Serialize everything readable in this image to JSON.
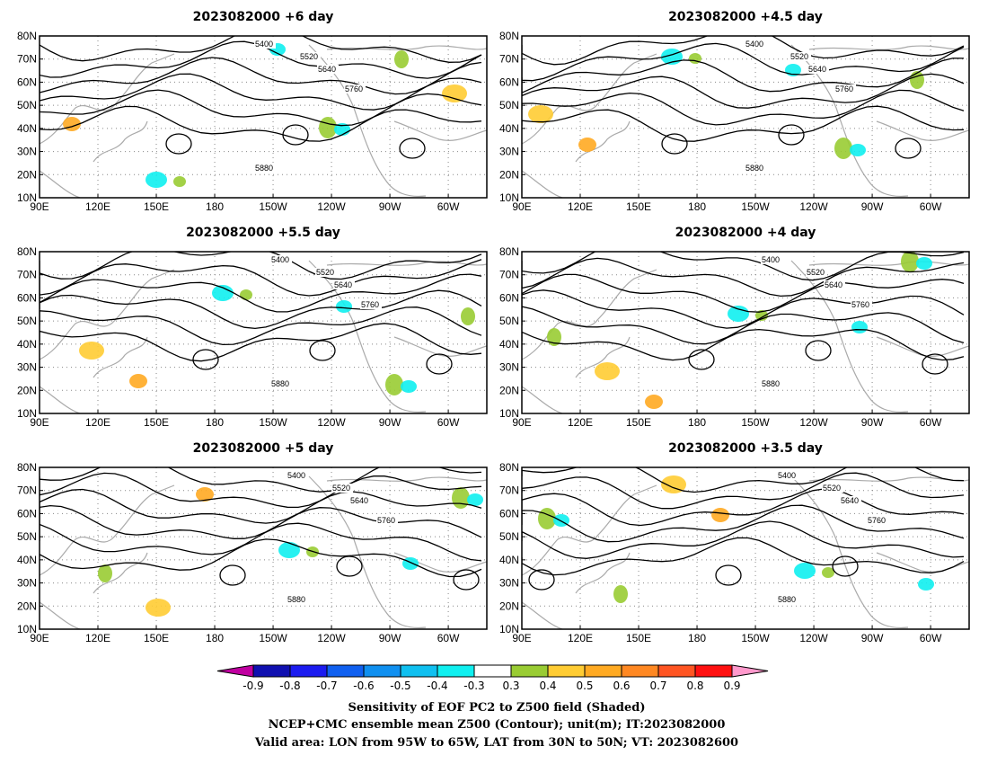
{
  "panels": [
    {
      "title": "2023082000  +6 day"
    },
    {
      "title": "2023082000  +4.5  day"
    },
    {
      "title": "2023082000  +5.5  day"
    },
    {
      "title": "2023082000  +4  day"
    },
    {
      "title": "2023082000  +5  day"
    },
    {
      "title": "2023082000  +3.5  day"
    }
  ],
  "map": {
    "lat_ticks": [
      "80N",
      "70N",
      "60N",
      "50N",
      "40N",
      "30N",
      "20N",
      "10N"
    ],
    "lon_ticks": [
      "90E",
      "120E",
      "150E",
      "180",
      "150W",
      "120W",
      "90W",
      "60W"
    ],
    "contour_labels": [
      "5400",
      "5520",
      "5640",
      "5760",
      "5880"
    ],
    "colors": {
      "coast": "#aaaaaa",
      "contour": "#000000",
      "grid": "#888888"
    }
  },
  "colorbar": {
    "ticks": [
      "-0.9",
      "-0.8",
      "-0.7",
      "-0.6",
      "-0.5",
      "-0.4",
      "-0.3",
      "0.3",
      "0.4",
      "0.5",
      "0.6",
      "0.7",
      "0.8",
      "0.9"
    ],
    "colors": [
      "#c000a0",
      "#1010b0",
      "#1c1cf0",
      "#1060f0",
      "#1090f0",
      "#10c0f0",
      "#10f0f0",
      "#ffffff",
      "#99cc33",
      "#ffcc33",
      "#ffaa22",
      "#ff8822",
      "#ff5522",
      "#ff1111",
      "#ff99cc"
    ]
  },
  "caption": {
    "line1": "Sensitivity of EOF PC2 to Z500 field (Shaded)",
    "line2": "NCEP+CMC ensemble mean Z500 (Contour); unit(m); IT:2023082000",
    "line3": "Valid area: LON from 95W to 65W, LAT from 30N to 50N; VT: 2023082600"
  }
}
